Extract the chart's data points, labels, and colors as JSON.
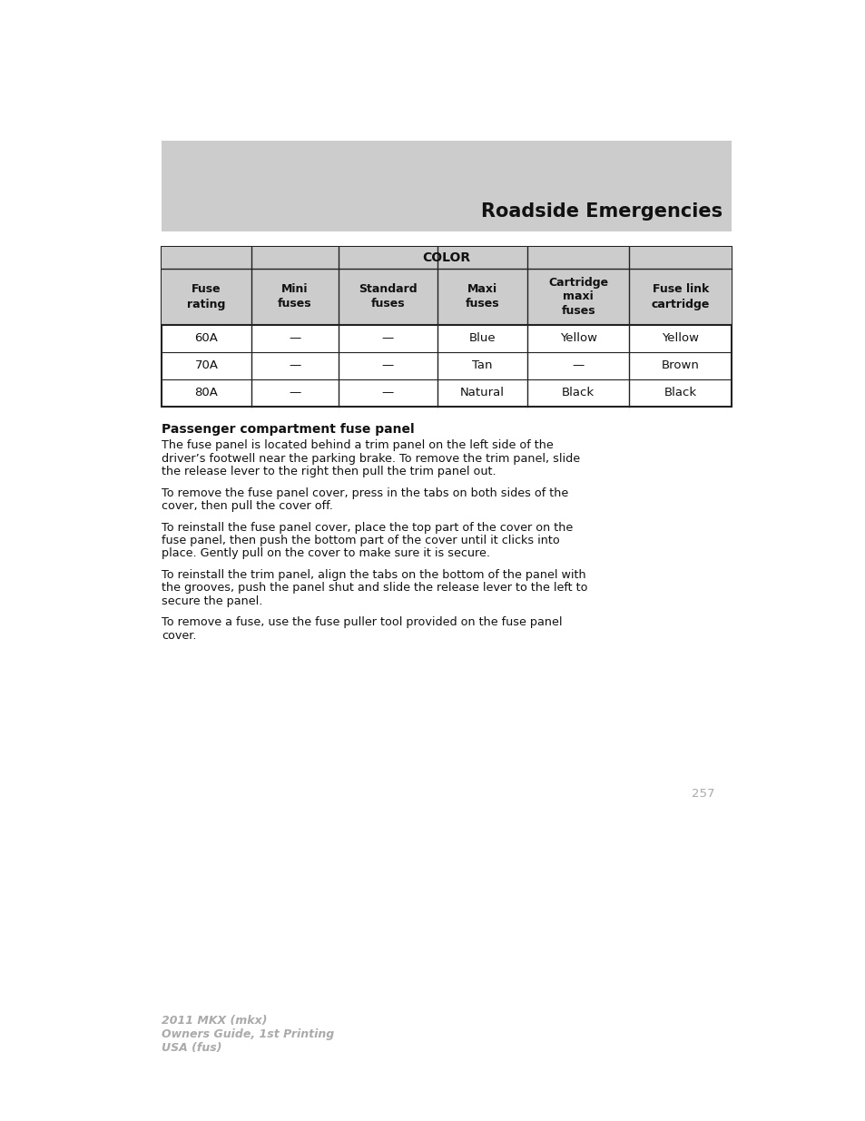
{
  "page_bg": "#ffffff",
  "header_bg": "#cccccc",
  "header_title": "Roadside Emergencies",
  "header_title_fontsize": 15,
  "table_header_bg": "#cccccc",
  "table_color_label": "COLOR",
  "col_headers": [
    "Fuse\nrating",
    "Mini\nfuses",
    "Standard\nfuses",
    "Maxi\nfuses",
    "Cartridge\nmaxi\nfuses",
    "Fuse link\ncartridge"
  ],
  "rows": [
    [
      "60A",
      "—",
      "—",
      "Blue",
      "Yellow",
      "Yellow"
    ],
    [
      "70A",
      "—",
      "—",
      "Tan",
      "—",
      "Brown"
    ],
    [
      "80A",
      "—",
      "—",
      "Natural",
      "Black",
      "Black"
    ]
  ],
  "section_title": "Passenger compartment fuse panel",
  "paragraphs": [
    "The fuse panel is located behind a trim panel on the left side of the\ndriver’s footwell near the parking brake. To remove the trim panel, slide\nthe release lever to the right then pull the trim panel out.",
    "To remove the fuse panel cover, press in the tabs on both sides of the\ncover, then pull the cover off.",
    "To reinstall the fuse panel cover, place the top part of the cover on the\nfuse panel, then push the bottom part of the cover until it clicks into\nplace. Gently pull on the cover to make sure it is secure.",
    "To reinstall the trim panel, align the tabs on the bottom of the panel with\nthe grooves, push the panel shut and slide the release lever to the left to\nsecure the panel.",
    "To remove a fuse, use the fuse puller tool provided on the fuse panel\ncover."
  ],
  "page_number": "257",
  "footer_line1": "2011 MKX (mkx)",
  "footer_line2": "Owners Guide, 1st Printing",
  "footer_line3": "USA (fus)",
  "footer_color": "#aaaaaa",
  "page_number_color": "#aaaaaa"
}
